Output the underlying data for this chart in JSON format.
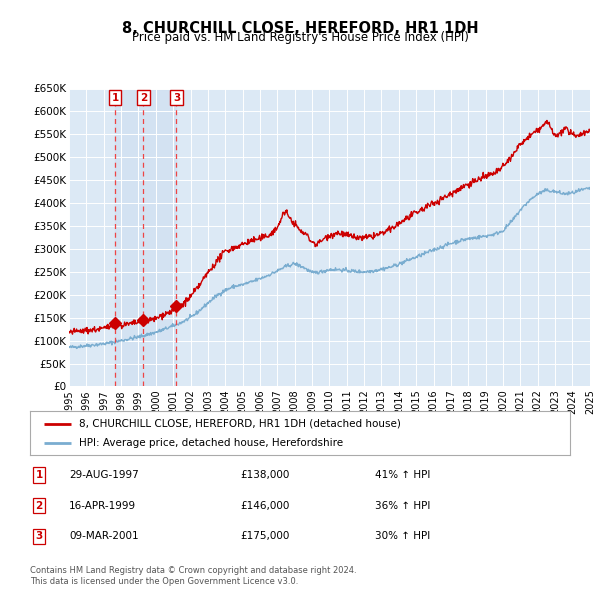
{
  "title": "8, CHURCHILL CLOSE, HEREFORD, HR1 1DH",
  "subtitle": "Price paid vs. HM Land Registry's House Price Index (HPI)",
  "sales": [
    {
      "label": "1",
      "date": 1997.66,
      "price": 138000
    },
    {
      "label": "2",
      "date": 1999.29,
      "price": 146000
    },
    {
      "label": "3",
      "date": 2001.19,
      "price": 175000
    }
  ],
  "sale_table": [
    {
      "num": "1",
      "date": "29-AUG-1997",
      "price": "£138,000",
      "hpi": "41% ↑ HPI"
    },
    {
      "num": "2",
      "date": "16-APR-1999",
      "price": "£146,000",
      "hpi": "36% ↑ HPI"
    },
    {
      "num": "3",
      "date": "09-MAR-2001",
      "price": "£175,000",
      "hpi": "30% ↑ HPI"
    }
  ],
  "legend_entries": [
    "8, CHURCHILL CLOSE, HEREFORD, HR1 1DH (detached house)",
    "HPI: Average price, detached house, Herefordshire"
  ],
  "red_color": "#cc0000",
  "blue_color": "#7aadd0",
  "dashed_color": "#ee4444",
  "shade_color": "#d8e8f5",
  "plot_bg": "#dce9f5",
  "ylim": [
    0,
    650000
  ],
  "xlim": [
    1995,
    2025
  ],
  "yticks": [
    0,
    50000,
    100000,
    150000,
    200000,
    250000,
    300000,
    350000,
    400000,
    450000,
    500000,
    550000,
    600000,
    650000
  ],
  "xticks": [
    1995,
    1996,
    1997,
    1998,
    1999,
    2000,
    2001,
    2002,
    2003,
    2004,
    2005,
    2006,
    2007,
    2008,
    2009,
    2010,
    2011,
    2012,
    2013,
    2014,
    2015,
    2016,
    2017,
    2018,
    2019,
    2020,
    2021,
    2022,
    2023,
    2024,
    2025
  ],
  "footnote": "Contains HM Land Registry data © Crown copyright and database right 2024.\nThis data is licensed under the Open Government Licence v3.0."
}
